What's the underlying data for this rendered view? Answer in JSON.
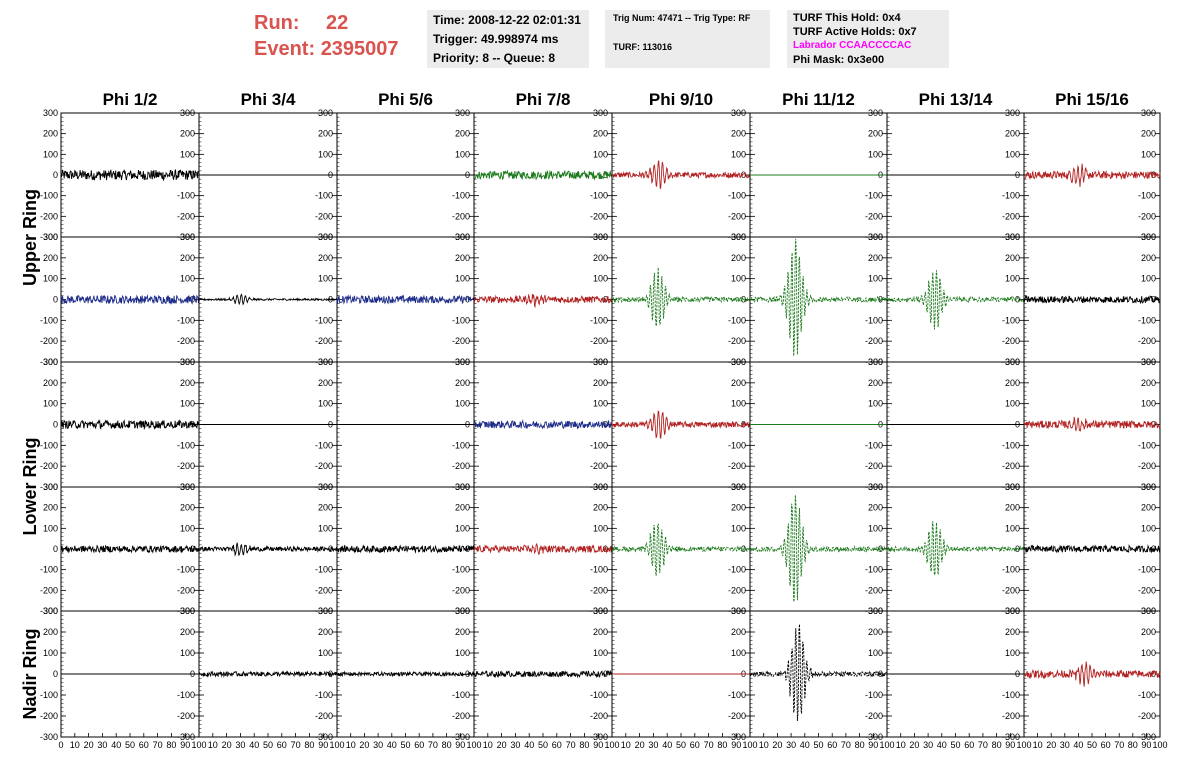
{
  "header": {
    "run_label": "Run:",
    "run_value": "22",
    "event_label": "Event:",
    "event_value": "2395007",
    "run_color": "#d9534f"
  },
  "info": {
    "time": "Time: 2008-12-22 02:01:31",
    "trigger": "Trigger: 49.998974 ms",
    "priority": "Priority: 8 -- Queue: 8",
    "trig_num": "Trig Num: 47471 -- Trig Type: RF",
    "turf": "TURF: 113016",
    "turf_this_hold": "TURF This Hold: 0x4",
    "turf_active_holds": "TURF Active Holds: 0x7",
    "labrador": "Labrador CCAACCCCAC",
    "labrador_color": "#ff00ff",
    "phi_mask": "Phi Mask: 0x3e00"
  },
  "chart_data": {
    "type": "line",
    "columns": [
      "Phi 1/2",
      "Phi 3/4",
      "Phi 5/6",
      "Phi 7/8",
      "Phi 9/10",
      "Phi 11/12",
      "Phi 13/14",
      "Phi 15/16"
    ],
    "ring_labels": [
      "Upper Ring",
      "Lower Ring",
      "Nadir Ring"
    ],
    "y_ticks": [
      300,
      200,
      100,
      0,
      -100,
      -200,
      -300
    ],
    "x_ticks": [
      0,
      10,
      20,
      30,
      40,
      50,
      60,
      70,
      80,
      90,
      100
    ],
    "xlim": [
      0,
      100
    ],
    "ylim": [
      -300,
      300
    ],
    "colors": {
      "k": "#000000",
      "g": "#1c7a1c",
      "r": "#b22222",
      "b": "#1f2d8a"
    },
    "panels": [
      [
        {
          "c": "k",
          "a": 25,
          "p": 0,
          "n": 28,
          "s": false
        },
        {
          "c": "k",
          "a": 0,
          "p": 0,
          "n": 0,
          "s": false
        },
        {
          "c": "k",
          "a": 0,
          "p": 0,
          "n": 0,
          "s": false
        },
        {
          "c": "g",
          "a": 25,
          "p": 0,
          "n": 22,
          "s": false
        },
        {
          "c": "r",
          "a": 85,
          "p": 34,
          "n": 15,
          "s": false
        },
        {
          "c": "g",
          "a": 0,
          "p": 0,
          "n": 0,
          "s": false
        },
        {
          "c": "k",
          "a": 0,
          "p": 0,
          "n": 0,
          "s": false
        },
        {
          "c": "r",
          "a": 70,
          "p": 40,
          "n": 20,
          "s": false
        }
      ],
      [
        {
          "c": "b",
          "a": 18,
          "p": 0,
          "n": 22,
          "s": false
        },
        {
          "c": "k",
          "a": 30,
          "p": 30,
          "n": 5,
          "s": false
        },
        {
          "c": "b",
          "a": 20,
          "p": 0,
          "n": 20,
          "s": false
        },
        {
          "c": "r",
          "a": 40,
          "p": 45,
          "n": 18,
          "s": false
        },
        {
          "c": "g",
          "a": 150,
          "p": 33,
          "n": 8,
          "s": true
        },
        {
          "c": "g",
          "a": 290,
          "p": 33,
          "n": 10,
          "s": true
        },
        {
          "c": "g",
          "a": 150,
          "p": 35,
          "n": 8,
          "s": true
        },
        {
          "c": "k",
          "a": 22,
          "p": 0,
          "n": 18,
          "s": false
        }
      ],
      [
        {
          "c": "k",
          "a": 25,
          "p": 0,
          "n": 22,
          "s": false
        },
        {
          "c": "k",
          "a": 0,
          "p": 0,
          "n": 0,
          "s": false
        },
        {
          "c": "k",
          "a": 0,
          "p": 0,
          "n": 0,
          "s": false
        },
        {
          "c": "b",
          "a": 25,
          "p": 0,
          "n": 20,
          "s": false
        },
        {
          "c": "r",
          "a": 85,
          "p": 34,
          "n": 15,
          "s": false
        },
        {
          "c": "g",
          "a": 0,
          "p": 0,
          "n": 0,
          "s": false
        },
        {
          "c": "k",
          "a": 0,
          "p": 0,
          "n": 0,
          "s": false
        },
        {
          "c": "r",
          "a": 50,
          "p": 40,
          "n": 20,
          "s": false
        }
      ],
      [
        {
          "c": "k",
          "a": 22,
          "p": 0,
          "n": 18,
          "s": false
        },
        {
          "c": "k",
          "a": 40,
          "p": 30,
          "n": 12,
          "s": false
        },
        {
          "c": "k",
          "a": 22,
          "p": 0,
          "n": 18,
          "s": false
        },
        {
          "c": "r",
          "a": 40,
          "p": 45,
          "n": 18,
          "s": false
        },
        {
          "c": "g",
          "a": 140,
          "p": 33,
          "n": 8,
          "s": true
        },
        {
          "c": "g",
          "a": 270,
          "p": 33,
          "n": 10,
          "s": true
        },
        {
          "c": "g",
          "a": 140,
          "p": 35,
          "n": 8,
          "s": true
        },
        {
          "c": "k",
          "a": 22,
          "p": 0,
          "n": 18,
          "s": false
        }
      ],
      [
        {
          "c": "k",
          "a": 0,
          "p": 0,
          "n": 0,
          "s": false
        },
        {
          "c": "k",
          "a": 15,
          "p": 0,
          "n": 12,
          "s": false
        },
        {
          "c": "k",
          "a": 15,
          "p": 0,
          "n": 10,
          "s": false
        },
        {
          "c": "k",
          "a": 20,
          "p": 0,
          "n": 15,
          "s": false
        },
        {
          "c": "r",
          "a": 0,
          "p": 0,
          "n": 0,
          "s": false
        },
        {
          "c": "k",
          "a": 240,
          "p": 35,
          "n": 12,
          "s": true
        },
        {
          "c": "k",
          "a": 0,
          "p": 0,
          "n": 0,
          "s": false
        },
        {
          "c": "r",
          "a": 70,
          "p": 45,
          "n": 20,
          "s": false
        }
      ]
    ]
  }
}
